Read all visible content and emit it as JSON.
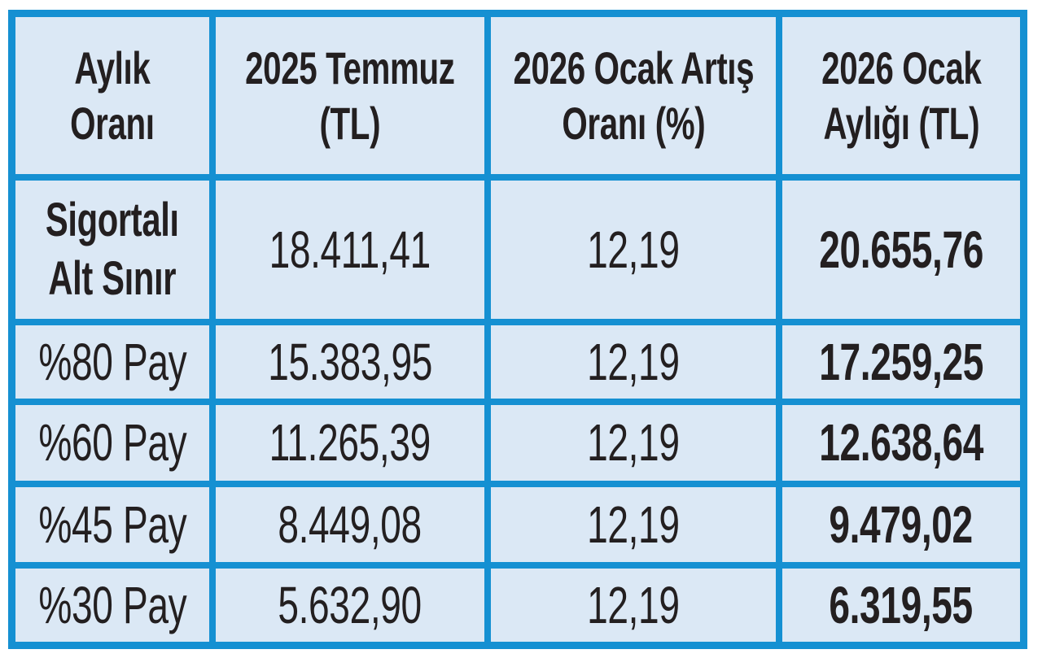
{
  "colors": {
    "grid_border": "#1590d2",
    "cell_background": "#dbe8f5",
    "text": "#231f20",
    "page_background": "#ffffff"
  },
  "display": {
    "headers": [
      "Aylık\nOranı",
      "2025 Temmuz\n(TL)",
      "2026 Ocak Artış\nOranı (%)",
      "2026 Ocak\nAylığı (TL)"
    ],
    "rows": [
      [
        "Sigortalı\nAlt Sınır",
        "18.411,41",
        "12,19",
        "20.655,76"
      ],
      [
        "%80 Pay",
        "15.383,95",
        "12,19",
        "17.259,25"
      ],
      [
        "%60 Pay",
        "11.265,39",
        "12,19",
        "12.638,64"
      ],
      [
        "%45 Pay",
        "8.449,08",
        "12,19",
        "9.479,02"
      ],
      [
        "%30 Pay",
        "5.632,90",
        "12,19",
        "6.319,55"
      ]
    ]
  },
  "chart_data": {
    "type": "table",
    "columns": [
      "Aylık Oranı",
      "2025 Temmuz (TL)",
      "2026 Ocak Artış Oranı (%)",
      "2026 Ocak Aylığı (TL)"
    ],
    "rows": [
      [
        "Sigortalı Alt Sınır",
        "18.411,41",
        "12,19",
        "20.655,76"
      ],
      [
        "%80 Pay",
        "15.383,95",
        "12,19",
        "17.259,25"
      ],
      [
        "%60 Pay",
        "11.265,39",
        "12,19",
        "12.638,64"
      ],
      [
        "%45 Pay",
        "8.449,08",
        "12,19",
        "9.479,02"
      ],
      [
        "%30 Pay",
        "5.632,90",
        "12,19",
        "6.319,55"
      ]
    ],
    "notes": {
      "increase_rate_all_rows_pct": "12,19",
      "number_format": "Turkish (dot thousands, comma decimals)"
    }
  }
}
